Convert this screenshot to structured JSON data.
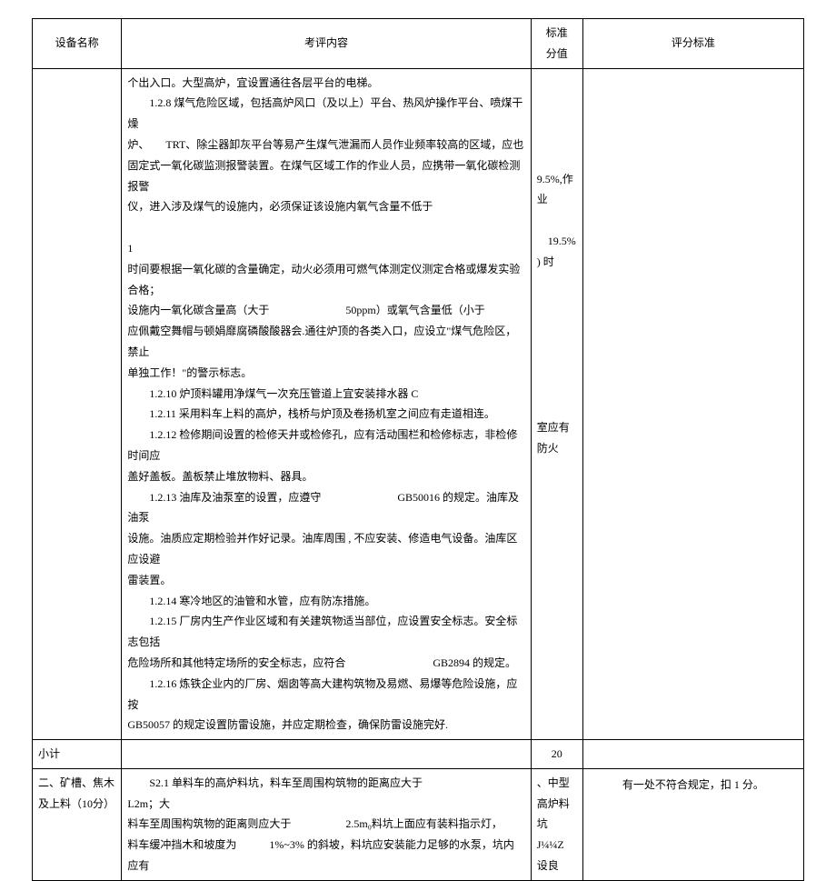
{
  "table": {
    "header": {
      "col1": "设备名称",
      "col2": "考评内容",
      "col3": "标准\n分值",
      "col4": "评分标准"
    },
    "row1": {
      "name": "",
      "content_lines": [
        {
          "text": "个出入口。大型高炉，宜设置通往各层平台的电梯。",
          "indent": false
        },
        {
          "text": "1.2.8 煤气危险区域，包括高炉风口（及以上）平台、热风炉操作平台、喷煤干燥",
          "indent": true
        },
        {
          "text": "炉、　　TRT、除尘器卸灰平台等易产生煤气泄漏而人员作业频率较高的区域，应也",
          "indent": false
        },
        {
          "text": "固定式一氧化碳监测报警装置。在煤气区域工作的作业人员，应携带一氧化碳检测报警",
          "indent": false
        },
        {
          "text": "仪，进入涉及煤气的设施内，必须保证该设施内氧气含量不低于",
          "indent": false
        },
        {
          "text": "　",
          "indent": false
        },
        {
          "text": "1",
          "indent": false
        },
        {
          "text": "时间要根据一氧化碳的含量确定，动火必须用可燃气体测定仪测定合格或爆发实验合格；",
          "indent": false
        },
        {
          "text": "设施内一氧化碳含量高（大于　　　　　　　50ppm）或氧气含量低（小于",
          "indent": false
        },
        {
          "text": "应佩戴空舞帽与顿娟靡腐磷酸酸器会.通往炉顶的各类入口，应设立\"煤气危险区，禁止",
          "indent": false
        },
        {
          "text": "单独工作！\"的警示标志。",
          "indent": false
        },
        {
          "text": "1.2.10 炉顶料罐用净煤气一次充压管道上宜安装排水器 C",
          "indent": true
        },
        {
          "text": "1.2.11 采用料车上料的高炉，栈桥与炉顶及卷扬机室之间应有走道相连。",
          "indent": true
        },
        {
          "text": "1.2.12 检修期间设置的检修天井或检修孔，应有活动围栏和检修标志，非检修时间应",
          "indent": true
        },
        {
          "text": "盖好盖板。盖板禁止堆放物料、器具。",
          "indent": false
        },
        {
          "text": "1.2.13 油库及油泵室的设置，应遵守　　　　　　　GB50016 的规定。油库及油泵",
          "indent": true
        },
        {
          "text": "设施。油质应定期检验并作好记录。油库周围 , 不应安装、修造电气设备。油库区应设避",
          "indent": false
        },
        {
          "text": "雷装置。",
          "indent": false
        },
        {
          "text": "1.2.14 寒冷地区的油管和水管，应有防冻措施。",
          "indent": true
        },
        {
          "text": "1.2.15 厂房内生产作业区域和有关建筑物适当部位，应设置安全标志。安全标志包括",
          "indent": true
        },
        {
          "text": "危险场所和其他特定场所的安全标志，应符合　　　　　　　　GB2894 的规定。",
          "indent": false
        },
        {
          "text": "1.2.16 炼铁企业内的厂房、烟囱等高大建构筑物及易燃、易爆等危险设施，应按",
          "indent": true
        },
        {
          "text": "GB50057 的规定设置防雷设施，并应定期检查，确保防雷设施完好.",
          "indent": false
        }
      ],
      "score": "9.5%,作业\n\n　19.5% ) 时\n\n\n\n\n\n\n\n室应有防火",
      "criteria": ""
    },
    "subtotal": {
      "name": "小计",
      "score": "20"
    },
    "row2": {
      "name": "二、矿槽、焦木及上料（10分）",
      "content": "S2.1 单料车的高炉料坑，料车至周围构筑物的距离应大于　　　　　　　　L2m；大\n料车至周围构筑物的距离则应大于　　　　　2.5m₀料坑上面应有装料指示灯，\n料车缓冲挡木和坡度为　　　1%~3% 的斜坡，料坑应安装能力足够的水泵，坑内应有",
      "score": "、中型高炉料坑 J¼¼Z 设良",
      "criteria": "有一处不符合规定，扣 1 分。"
    }
  },
  "colors": {
    "background": "#ffffff",
    "text": "#000000",
    "border": "#000000"
  },
  "typography": {
    "base_fontsize": 12,
    "line_height": 1.9,
    "font_family": "SimSun"
  }
}
